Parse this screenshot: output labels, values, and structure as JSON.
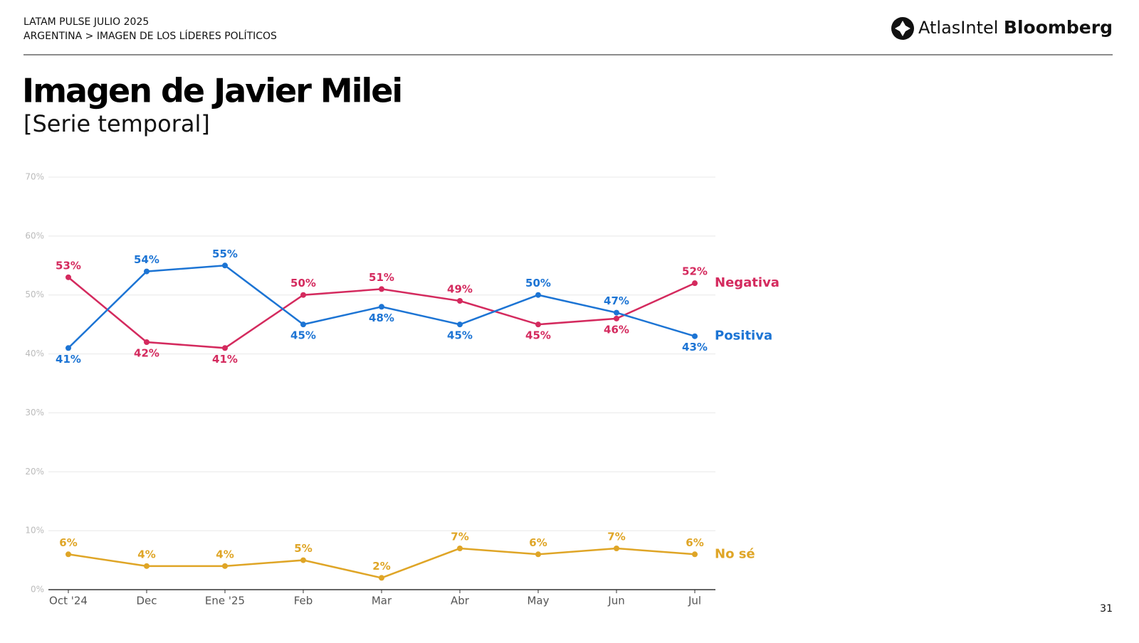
{
  "header": {
    "kicker": "LATAM PULSE JULIO 2025",
    "breadcrumb": "ARGENTINA > IMAGEN DE LOS LÍDERES POLÍTICOS",
    "logo_atlas": "AtlasIntel",
    "logo_bloomberg": "Bloomberg"
  },
  "chart_data": {
    "type": "line",
    "title": "Imagen de Javier Milei",
    "subtitle": "[Serie temporal]",
    "categories": [
      "Oct '24",
      "Dec",
      "Ene '25",
      "Feb",
      "Mar",
      "Abr",
      "May",
      "Jun",
      "Jul"
    ],
    "series": [
      {
        "name": "Negativa",
        "color": "#d42a5e",
        "values": [
          53,
          42,
          41,
          50,
          51,
          49,
          45,
          46,
          52
        ],
        "value_labels": [
          "53%",
          "42%",
          "41%",
          "50%",
          "51%",
          "49%",
          "45%",
          "46%",
          "52%"
        ]
      },
      {
        "name": "Positiva",
        "color": "#1c74d4",
        "values": [
          41,
          54,
          55,
          45,
          48,
          45,
          50,
          47,
          43
        ],
        "value_labels": [
          "41%",
          "54%",
          "55%",
          "45%",
          "48%",
          "45%",
          "50%",
          "47%",
          "43%"
        ]
      },
      {
        "name": "No sé",
        "color": "#dfa526",
        "values": [
          6,
          4,
          4,
          5,
          2,
          7,
          6,
          7,
          6
        ],
        "value_labels": [
          "6%",
          "4%",
          "4%",
          "5%",
          "2%",
          "7%",
          "6%",
          "7%",
          "6%"
        ]
      }
    ],
    "ylim": [
      0,
      70
    ],
    "yticks": [
      {
        "value": 0,
        "label": "0%"
      },
      {
        "value": 10,
        "label": "10%"
      },
      {
        "value": 20,
        "label": "20%"
      },
      {
        "value": 30,
        "label": "30%"
      },
      {
        "value": 40,
        "label": "40%"
      },
      {
        "value": 50,
        "label": "50%"
      },
      {
        "value": 60,
        "label": "60%"
      },
      {
        "value": 70,
        "label": "70%"
      }
    ],
    "grid": true
  },
  "page_number": "31"
}
